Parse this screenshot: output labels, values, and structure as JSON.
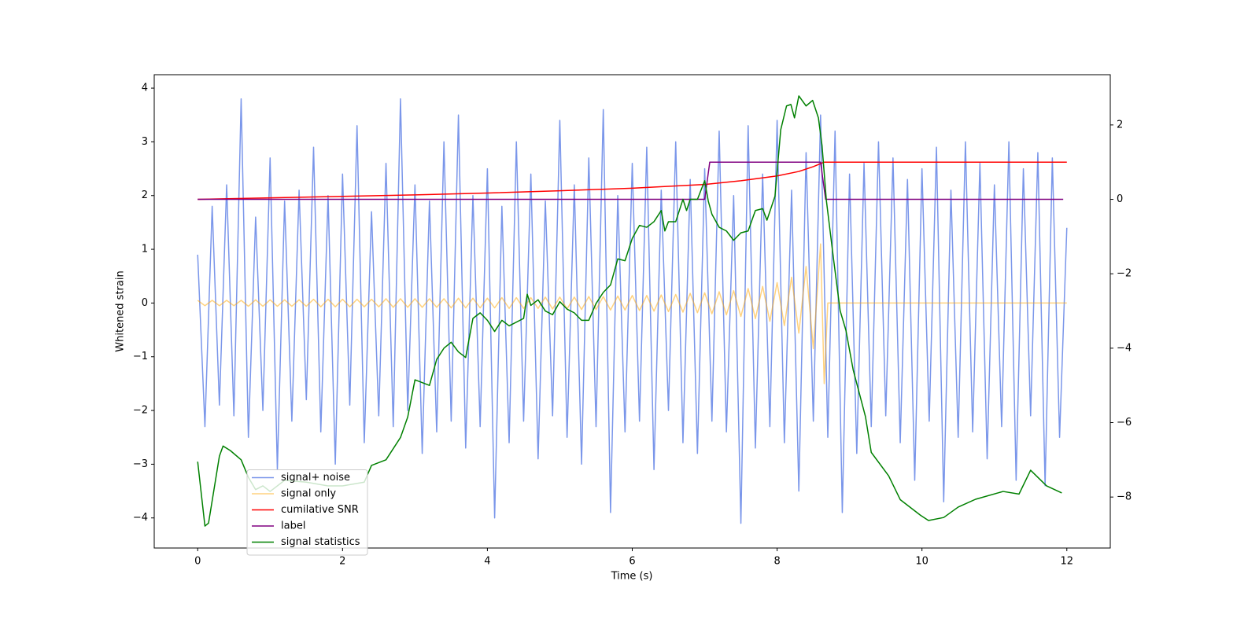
{
  "chart_data": {
    "type": "line",
    "xlabel": "Time (s)",
    "ylabel": "Whitened strain",
    "xlim": [
      -0.6,
      12.6
    ],
    "xticks": [
      0,
      2,
      4,
      6,
      8,
      10,
      12
    ],
    "ylim": [
      -4.56,
      4.25
    ],
    "yticks": [
      {
        "value": -4,
        "label": "−4"
      },
      {
        "value": -3,
        "label": "−3"
      },
      {
        "value": -2,
        "label": "−2"
      },
      {
        "value": -1,
        "label": "−1"
      },
      0,
      1,
      2,
      3,
      4
    ],
    "y2lim": [
      -9.37,
      3.35
    ],
    "y2ticks": [
      {
        "value": -8,
        "label": "−8"
      },
      {
        "value": -6,
        "label": "−6"
      },
      {
        "value": -4,
        "label": "−4"
      },
      {
        "value": -2,
        "label": "−2"
      },
      0,
      2
    ],
    "legend": "lower left",
    "series": [
      {
        "name": "signal+ noise",
        "color": "#4169e1",
        "alpha": 0.7,
        "x": [
          0,
          0.1,
          0.2,
          0.3,
          0.4,
          0.5,
          0.6,
          0.7,
          0.8,
          0.9,
          1,
          1.1,
          1.2,
          1.3,
          1.4,
          1.5,
          1.6,
          1.7,
          1.8,
          1.9,
          2,
          2.1,
          2.2,
          2.3,
          2.4,
          2.5,
          2.6,
          2.7,
          2.8,
          2.9,
          3,
          3.1,
          3.2,
          3.3,
          3.4,
          3.5,
          3.6,
          3.7,
          3.8,
          3.9,
          4,
          4.1,
          4.2,
          4.3,
          4.4,
          4.5,
          4.6,
          4.7,
          4.8,
          4.9,
          5,
          5.1,
          5.2,
          5.3,
          5.4,
          5.5,
          5.6,
          5.7,
          5.8,
          5.9,
          6,
          6.1,
          6.2,
          6.3,
          6.4,
          6.5,
          6.6,
          6.7,
          6.8,
          6.9,
          7,
          7.1,
          7.2,
          7.3,
          7.4,
          7.5,
          7.6,
          7.7,
          7.8,
          7.9,
          8,
          8.1,
          8.2,
          8.3,
          8.4,
          8.5,
          8.6,
          8.7,
          8.8,
          8.9,
          9,
          9.1,
          9.2,
          9.3,
          9.4,
          9.5,
          9.6,
          9.7,
          9.8,
          9.9,
          10,
          10.1,
          10.2,
          10.3,
          10.4,
          10.5,
          10.6,
          10.7,
          10.8,
          10.9,
          11,
          11.1,
          11.2,
          11.3,
          11.4,
          11.5,
          11.6,
          11.7,
          11.8,
          11.9,
          12
        ],
        "values": [
          0.9,
          -2.3,
          1.8,
          -1.9,
          2.2,
          -2.1,
          3.8,
          -2.5,
          1.6,
          -2.0,
          2.7,
          -3.1,
          1.9,
          -2.2,
          2.1,
          -1.8,
          2.9,
          -2.4,
          2.0,
          -3.0,
          2.4,
          -1.9,
          3.3,
          -2.6,
          1.7,
          -2.1,
          2.6,
          -2.3,
          3.8,
          -2.0,
          2.2,
          -2.8,
          1.9,
          -2.4,
          3.0,
          -2.2,
          3.5,
          -2.7,
          2.0,
          -2.3,
          2.5,
          -4.0,
          1.8,
          -2.6,
          3.0,
          -2.2,
          2.4,
          -2.9,
          1.9,
          -2.1,
          3.4,
          -2.5,
          2.2,
          -3.0,
          2.7,
          -2.3,
          3.6,
          -3.9,
          2.0,
          -2.4,
          2.6,
          -2.2,
          2.9,
          -3.1,
          2.1,
          -2.0,
          3.0,
          -2.6,
          2.3,
          -2.8,
          2.5,
          -2.2,
          3.2,
          -2.4,
          2.0,
          -4.1,
          3.3,
          -2.7,
          2.4,
          -2.3,
          3.4,
          -2.6,
          2.1,
          -3.5,
          2.8,
          -2.2,
          3.5,
          -2.5,
          3.2,
          -3.9,
          2.4,
          -2.8,
          2.6,
          -2.3,
          3.0,
          -2.1,
          2.7,
          -2.6,
          2.3,
          -3.3,
          2.5,
          -2.2,
          2.9,
          -3.7,
          2.1,
          -2.5,
          3.0,
          -2.4,
          2.6,
          -2.9,
          2.2,
          -2.3,
          3.0,
          -3.3,
          2.5,
          -2.1,
          2.8,
          -3.4,
          2.7,
          -2.5,
          1.4
        ]
      },
      {
        "name": "signal only",
        "color": "orange",
        "alpha": 0.5,
        "x": [
          0,
          0.1,
          0.2,
          0.3,
          0.4,
          0.5,
          0.6,
          0.7,
          0.8,
          0.9,
          1,
          1.1,
          1.2,
          1.3,
          1.4,
          1.5,
          1.6,
          1.7,
          1.8,
          1.9,
          2,
          2.1,
          2.2,
          2.3,
          2.4,
          2.5,
          2.6,
          2.7,
          2.8,
          2.9,
          3,
          3.1,
          3.2,
          3.3,
          3.4,
          3.5,
          3.6,
          3.7,
          3.8,
          3.9,
          4,
          4.1,
          4.2,
          4.3,
          4.4,
          4.5,
          4.6,
          4.7,
          4.8,
          4.9,
          5,
          5.1,
          5.2,
          5.3,
          5.4,
          5.5,
          5.6,
          5.7,
          5.8,
          5.9,
          6,
          6.1,
          6.2,
          6.3,
          6.4,
          6.5,
          6.6,
          6.7,
          6.8,
          6.9,
          7,
          7.1,
          7.2,
          7.3,
          7.4,
          7.5,
          7.6,
          7.7,
          7.8,
          7.9,
          8,
          8.1,
          8.2,
          8.3,
          8.4,
          8.5,
          8.6,
          8.65,
          8.7,
          12
        ],
        "values": [
          0.05,
          -0.05,
          0.05,
          -0.05,
          0.05,
          -0.05,
          0.05,
          -0.06,
          0.06,
          -0.06,
          0.06,
          -0.06,
          0.06,
          -0.06,
          0.06,
          -0.06,
          0.07,
          -0.07,
          0.07,
          -0.07,
          0.07,
          -0.07,
          0.07,
          -0.07,
          0.07,
          -0.07,
          0.08,
          -0.08,
          0.08,
          -0.08,
          0.08,
          -0.08,
          0.08,
          -0.08,
          0.08,
          -0.09,
          0.09,
          -0.09,
          0.09,
          -0.09,
          0.09,
          -0.09,
          0.1,
          -0.1,
          0.1,
          -0.1,
          0.1,
          -0.1,
          0.11,
          -0.11,
          0.11,
          -0.11,
          0.11,
          -0.12,
          0.12,
          -0.12,
          0.12,
          -0.13,
          0.13,
          -0.13,
          0.14,
          -0.14,
          0.14,
          -0.15,
          0.15,
          -0.16,
          0.16,
          -0.17,
          0.18,
          -0.18,
          0.19,
          -0.2,
          0.21,
          -0.22,
          0.23,
          -0.25,
          0.27,
          -0.29,
          0.31,
          -0.34,
          0.38,
          -0.42,
          0.48,
          -0.56,
          0.68,
          -0.85,
          1.1,
          -1.5,
          0,
          0
        ]
      },
      {
        "name": "cumilative SNR",
        "color": "red",
        "axis": "y2",
        "x": [
          0,
          1,
          2,
          3,
          4,
          5,
          6,
          7,
          7.5,
          8,
          8.3,
          8.5,
          8.65,
          8.7,
          12
        ],
        "values": [
          0,
          0.04,
          0.08,
          0.12,
          0.17,
          0.23,
          0.3,
          0.4,
          0.5,
          0.63,
          0.75,
          0.88,
          1.0,
          1.0,
          1.0
        ]
      },
      {
        "name": "label",
        "color": "purple",
        "axis": "y2",
        "x": [
          0,
          7.0,
          7.07,
          8.6,
          8.67,
          11.95
        ],
        "values": [
          0,
          0,
          1,
          1,
          0,
          0
        ]
      },
      {
        "name": "signal statistics",
        "color": "green",
        "axis": "y2",
        "x": [
          0,
          0.1,
          0.15,
          0.3,
          0.35,
          0.45,
          0.6,
          0.7,
          0.8,
          0.9,
          1.0,
          1.2,
          1.5,
          1.8,
          2.0,
          2.3,
          2.4,
          2.6,
          2.8,
          2.9,
          3.0,
          3.2,
          3.3,
          3.4,
          3.5,
          3.6,
          3.7,
          3.8,
          3.9,
          4.0,
          4.1,
          4.2,
          4.3,
          4.5,
          4.55,
          4.6,
          4.7,
          4.8,
          4.9,
          5.0,
          5.1,
          5.2,
          5.3,
          5.4,
          5.5,
          5.6,
          5.7,
          5.8,
          5.9,
          6.0,
          6.1,
          6.2,
          6.3,
          6.4,
          6.45,
          6.5,
          6.6,
          6.7,
          6.75,
          6.8,
          6.9,
          7.0,
          7.05,
          7.1,
          7.2,
          7.3,
          7.4,
          7.5,
          7.6,
          7.7,
          7.8,
          7.86,
          7.97,
          8.05,
          8.13,
          8.19,
          8.24,
          8.3,
          8.4,
          8.49,
          8.57,
          8.62,
          8.68,
          8.78,
          8.87,
          8.95,
          9.05,
          9.22,
          9.3,
          9.54,
          9.7,
          9.98,
          10.09,
          10.3,
          10.5,
          10.74,
          11.12,
          11.34,
          11.5,
          11.72,
          11.93
        ],
        "values": [
          -7.05,
          -8.78,
          -8.7,
          -6.9,
          -6.63,
          -6.75,
          -7.0,
          -7.47,
          -7.8,
          -7.7,
          -7.85,
          -7.55,
          -7.6,
          -7.7,
          -7.7,
          -7.6,
          -7.15,
          -7.0,
          -6.4,
          -5.85,
          -4.85,
          -5.0,
          -4.3,
          -4.0,
          -3.84,
          -4.1,
          -4.25,
          -3.2,
          -3.05,
          -3.25,
          -3.55,
          -3.25,
          -3.4,
          -3.2,
          -2.55,
          -2.85,
          -2.7,
          -3.0,
          -3.1,
          -2.75,
          -2.95,
          -3.05,
          -3.25,
          -3.25,
          -2.8,
          -2.5,
          -2.3,
          -1.6,
          -1.65,
          -1.05,
          -0.7,
          -0.75,
          -0.6,
          -0.3,
          -0.85,
          -0.6,
          -0.6,
          0,
          -0.3,
          0,
          0,
          0.5,
          -0.05,
          -0.4,
          -0.75,
          -0.85,
          -1.1,
          -0.9,
          -0.85,
          -0.3,
          -0.25,
          -0.56,
          0.08,
          1.87,
          2.51,
          2.55,
          2.19,
          2.78,
          2.51,
          2.66,
          2.19,
          1.45,
          -0.03,
          -1.62,
          -2.99,
          -3.52,
          -4.58,
          -5.84,
          -6.8,
          -7.43,
          -8.07,
          -8.49,
          -8.63,
          -8.55,
          -8.27,
          -8.06,
          -7.85,
          -7.92,
          -7.28,
          -7.7,
          -7.89
        ]
      }
    ]
  }
}
